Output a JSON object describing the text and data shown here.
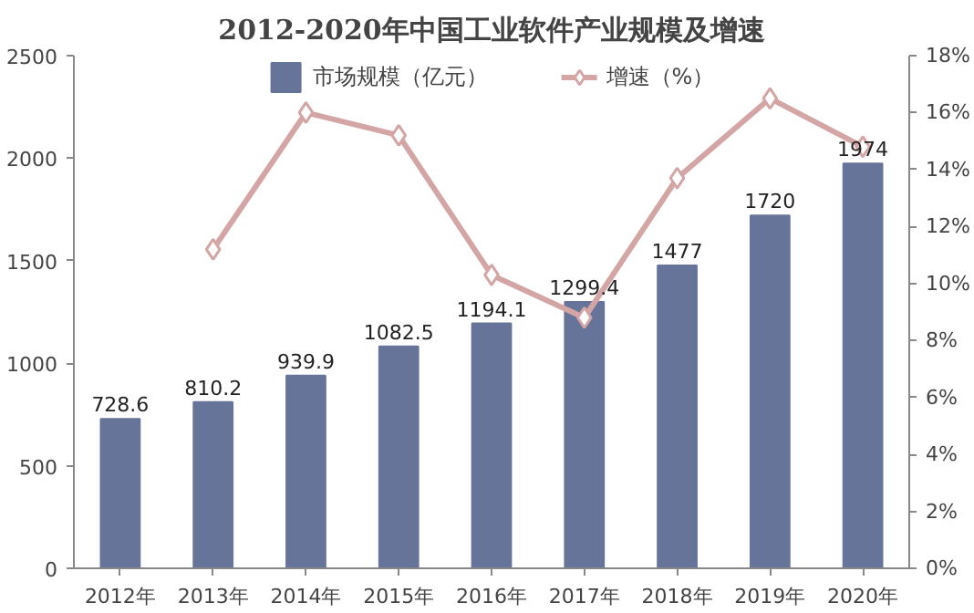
{
  "chart_data": {
    "type": "bar",
    "title": "2012-2020年中国工业软件产业规模及增速",
    "categories": [
      "2012年",
      "2013年",
      "2014年",
      "2015年",
      "2016年",
      "2017年",
      "2018年",
      "2019年",
      "2020年"
    ],
    "series": [
      {
        "name": "市场规模（亿元）",
        "color": "#67749a",
        "values": [
          728.6,
          810.2,
          939.9,
          1082.5,
          1194.1,
          1299.4,
          1477,
          1720,
          1974
        ],
        "value_labels": [
          "728.6",
          "810.2",
          "939.9",
          "1082.5",
          "1194.1",
          "1299.4",
          "1477",
          "1720",
          "1974"
        ]
      },
      {
        "name": "增速（%）",
        "type": "line",
        "axis": "y2",
        "color": "#d4a5a5",
        "marker": "diamond",
        "values": [
          null,
          11.2,
          16.0,
          15.2,
          10.3,
          8.8,
          13.7,
          16.5,
          14.8
        ]
      }
    ],
    "ylim": [
      0,
      2500
    ],
    "yticks": [
      0,
      500,
      1000,
      1500,
      2000,
      2500
    ],
    "y2lim": [
      0,
      18
    ],
    "y2ticks": [
      {
        "value": 0,
        "label": "0%"
      },
      {
        "value": 2,
        "label": "2%"
      },
      {
        "value": 4,
        "label": "4%"
      },
      {
        "value": 6,
        "label": "6%"
      },
      {
        "value": 8,
        "label": "8%"
      },
      {
        "value": 10,
        "label": "10%"
      },
      {
        "value": 12,
        "label": "12%"
      },
      {
        "value": 14,
        "label": "14%"
      },
      {
        "value": 16,
        "label": "16%"
      },
      {
        "value": 18,
        "label": "18%"
      }
    ],
    "legend": "top",
    "grid": false
  }
}
